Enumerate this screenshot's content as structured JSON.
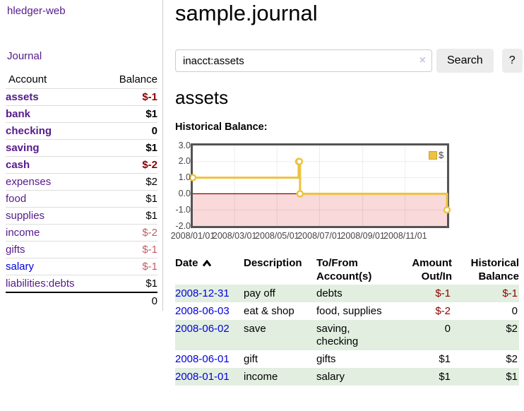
{
  "app": {
    "brand": "hledger-web"
  },
  "sidebar": {
    "journal_link": "Journal",
    "accounts": {
      "header": {
        "account": "Account",
        "balance": "Balance"
      },
      "rows": [
        {
          "name": "assets",
          "balance": "$-1",
          "indent": 1,
          "bold": true
        },
        {
          "name": "bank",
          "balance": "$1",
          "indent": 2,
          "bold": true
        },
        {
          "name": "checking",
          "balance": "0",
          "indent": 3,
          "bold": true
        },
        {
          "name": "saving",
          "balance": "$1",
          "indent": 3,
          "bold": true
        },
        {
          "name": "cash",
          "balance": "$-2",
          "indent": 2,
          "bold": true
        },
        {
          "name": "expenses",
          "balance": "$2",
          "indent": 1,
          "bold": false
        },
        {
          "name": "food",
          "balance": "$1",
          "indent": 2,
          "bold": false
        },
        {
          "name": "supplies",
          "balance": "$1",
          "indent": 2,
          "bold": false
        },
        {
          "name": "income",
          "balance": "$-2",
          "indent": 1,
          "bold": false
        },
        {
          "name": "gifts",
          "balance": "$-1",
          "indent": 2,
          "bold": false
        },
        {
          "name": "salary",
          "balance": "$-1",
          "indent": 2,
          "bold": false,
          "unvisited": true
        },
        {
          "name": "liabilities:debts",
          "balance": "$1",
          "indent": 1,
          "bold": false
        }
      ],
      "total": "0"
    }
  },
  "main": {
    "title": "sample.journal",
    "search": {
      "value": "inacct:assets",
      "clear_icon": "×",
      "search_button": "Search",
      "help_button": "?"
    },
    "account_heading": "assets",
    "chart_title": "Historical Balance:"
  },
  "chart_data": {
    "type": "line",
    "step": true,
    "title": "Historical Balance:",
    "series": [
      {
        "name": "$",
        "color": "#edc240",
        "points": [
          [
            "2008-01-01",
            1.0
          ],
          [
            "2008-06-01",
            2.0
          ],
          [
            "2008-06-02",
            2.0
          ],
          [
            "2008-06-03",
            0.0
          ],
          [
            "2008-12-31",
            -1.0
          ]
        ]
      }
    ],
    "ylim": [
      -2.0,
      3.0
    ],
    "yticks": [
      "3.0",
      "2.0",
      "1.0",
      "0.0",
      "-1.0",
      "-2.0"
    ],
    "xticks": [
      "2008/01/01",
      "2008/03/01",
      "2008/05/01",
      "2008/07/01",
      "2008/09/01",
      "2008/11/01"
    ],
    "legend": {
      "label": "$",
      "position": "top-right"
    },
    "grid": true,
    "negative_region": true
  },
  "register": {
    "headers": {
      "date": "Date",
      "description": "Description",
      "accounts": "To/From Account(s)",
      "amount": "Amount Out/In",
      "balance": "Historical Balance"
    },
    "sort_icon": "chevron-up",
    "rows": [
      {
        "date": "2008-12-31",
        "description": "pay off",
        "accounts": "debts",
        "amount": "$-1",
        "balance": "$-1"
      },
      {
        "date": "2008-06-03",
        "description": "eat & shop",
        "accounts": "food, supplies",
        "amount": "$-2",
        "balance": "0"
      },
      {
        "date": "2008-06-02",
        "description": "save",
        "accounts": "saving, checking",
        "amount": "0",
        "balance": "$2"
      },
      {
        "date": "2008-06-01",
        "description": "gift",
        "accounts": "gifts",
        "amount": "$1",
        "balance": "$2"
      },
      {
        "date": "2008-01-01",
        "description": "income",
        "accounts": "salary",
        "amount": "$1",
        "balance": "$1"
      }
    ]
  },
  "colors": {
    "link_visited": "#551a8b",
    "link_unvisited": "#0000dd",
    "negative_strong": "#8b0000",
    "negative_soft": "#c05e66",
    "row_alt_green": "#e2efe0",
    "series_yellow": "#edc240",
    "zero_line": "#8b0000",
    "negative_fill": "#f9d9d9",
    "grid_line": "#e5e5e5"
  }
}
